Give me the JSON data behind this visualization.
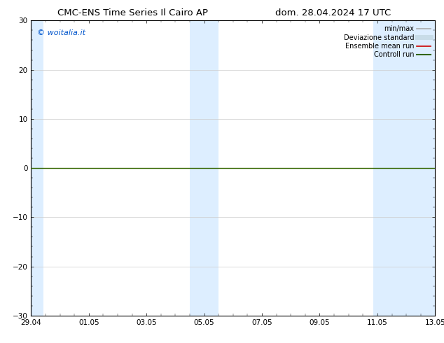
{
  "title_left": "CMC-ENS Time Series Il Cairo AP",
  "title_right": "dom. 28.04.2024 17 UTC",
  "watermark": "© woitalia.it",
  "watermark_color": "#0055cc",
  "xlim_left": 0,
  "xlim_right": 14,
  "ylim_bottom": -30,
  "ylim_top": 30,
  "yticks": [
    -30,
    -20,
    -10,
    0,
    10,
    20,
    30
  ],
  "xtick_labels": [
    "29.04",
    "01.05",
    "03.05",
    "05.05",
    "07.05",
    "09.05",
    "11.05",
    "13.05"
  ],
  "xtick_positions": [
    0,
    2,
    4,
    6,
    8,
    10,
    12,
    14
  ],
  "background_color": "#ffffff",
  "plot_bg_color": "#ffffff",
  "shaded_bands": [
    {
      "x_start": 0.0,
      "x_end": 0.42
    },
    {
      "x_start": 5.5,
      "x_end": 6.5
    },
    {
      "x_start": 11.85,
      "x_end": 14.0
    }
  ],
  "shaded_color": "#ddeeff",
  "zero_line_color": "#336600",
  "legend_items": [
    {
      "label": "min/max",
      "color": "#aaaaaa",
      "linestyle": "-",
      "linewidth": 1.2
    },
    {
      "label": "Deviazione standard",
      "color": "#c8dce8",
      "linestyle": "-",
      "linewidth": 5
    },
    {
      "label": "Ensemble mean run",
      "color": "#cc0000",
      "linestyle": "-",
      "linewidth": 1.2
    },
    {
      "label": "Controll run",
      "color": "#336600",
      "linestyle": "-",
      "linewidth": 1.5
    }
  ],
  "title_fontsize": 9.5,
  "tick_fontsize": 7.5,
  "legend_fontsize": 7,
  "grid_color": "#cccccc",
  "grid_linewidth": 0.5,
  "border_color": "#000000",
  "watermark_fontsize": 8
}
